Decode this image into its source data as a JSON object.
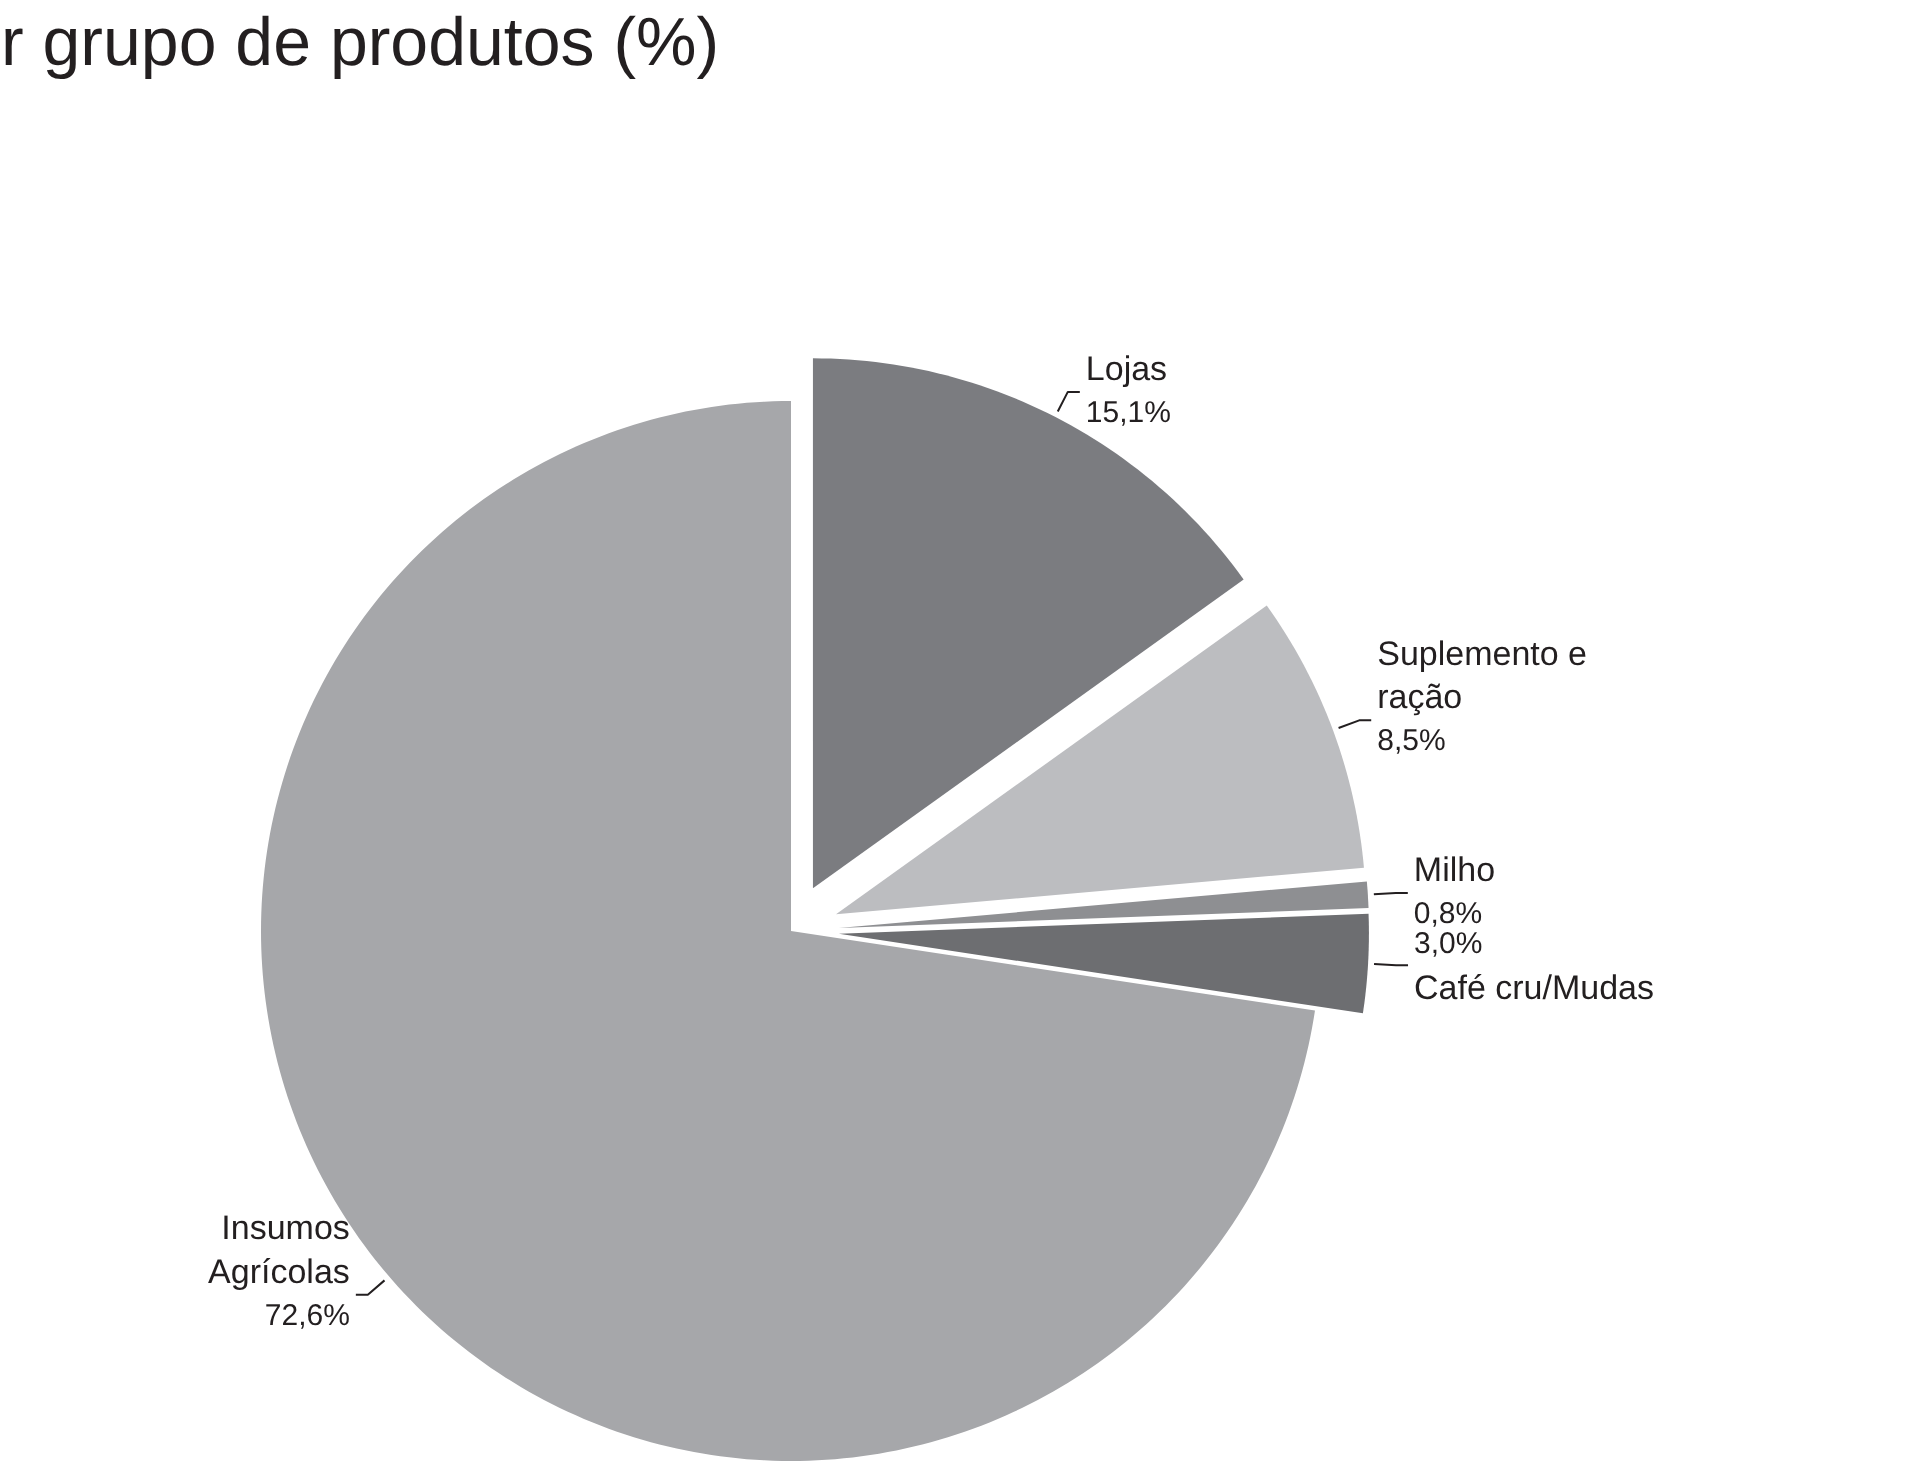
{
  "chart_data": {
    "type": "pie",
    "title": "r grupo de produtos (%)",
    "categories": [
      "Lojas",
      "Suplemento e ração",
      "Milho",
      "Café cru/Mudas",
      "Insumos Agrícolas"
    ],
    "values": [
      15.1,
      8.5,
      0.8,
      3.0,
      72.6
    ],
    "colors": [
      "#7b7c80",
      "#bcbdc0",
      "#8e8f92",
      "#6d6e71",
      "#a6a7aa"
    ],
    "value_labels": [
      "15,1%",
      "8,5%",
      "0,8%",
      "3,0%",
      "72,6%"
    ]
  }
}
